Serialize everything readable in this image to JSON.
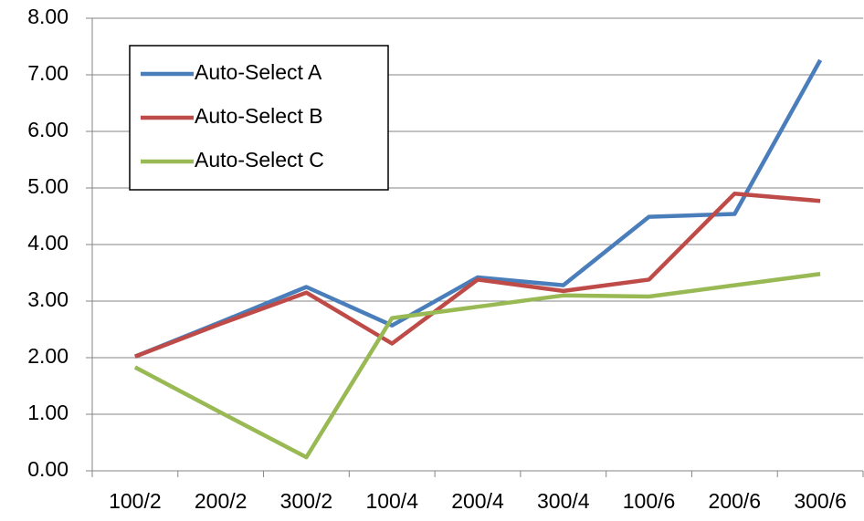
{
  "chart_data": {
    "type": "line",
    "categories": [
      "100/2",
      "200/2",
      "300/2",
      "100/4",
      "200/4",
      "300/4",
      "100/6",
      "200/6",
      "300/6"
    ],
    "series": [
      {
        "name": "Auto-Select A",
        "color": "#4a7ebb",
        "values": [
          2.02,
          2.63,
          3.25,
          2.57,
          3.42,
          3.28,
          4.49,
          4.54,
          7.26
        ]
      },
      {
        "name": "Auto-Select B",
        "color": "#be4b48",
        "values": [
          2.02,
          2.6,
          3.15,
          2.25,
          3.38,
          3.18,
          3.38,
          4.9,
          4.77
        ]
      },
      {
        "name": "Auto-Select C",
        "color": "#98b954",
        "values": [
          1.83,
          1.03,
          0.24,
          2.7,
          2.9,
          3.1,
          3.08,
          3.28,
          3.48
        ]
      }
    ],
    "ylim": [
      0,
      8
    ],
    "yticks": [
      {
        "value": 0,
        "label": "0.00"
      },
      {
        "value": 1,
        "label": "1.00"
      },
      {
        "value": 2,
        "label": "2.00"
      },
      {
        "value": 3,
        "label": "3.00"
      },
      {
        "value": 4,
        "label": "4.00"
      },
      {
        "value": 5,
        "label": "5.00"
      },
      {
        "value": 6,
        "label": "6.00"
      },
      {
        "value": 7,
        "label": "7.00"
      },
      {
        "value": 8,
        "label": "8.00"
      }
    ],
    "grid": true,
    "legend": "upper left"
  }
}
